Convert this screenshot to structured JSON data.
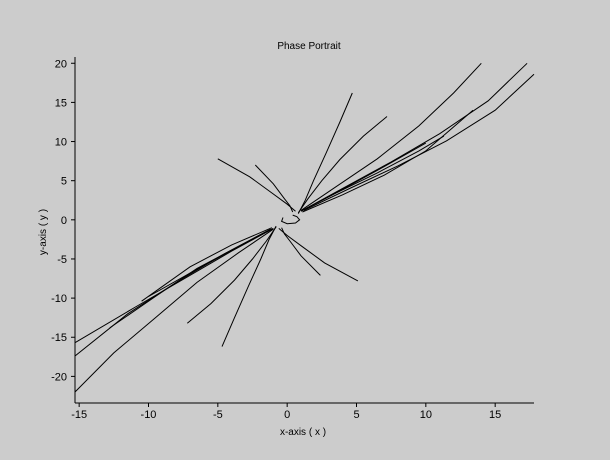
{
  "chart_data": {
    "type": "line",
    "title": "Phase Portrait",
    "xlabel": "x-axis ( x )",
    "ylabel": "y-axis ( y )",
    "xlim": [
      -15.3,
      17.8
    ],
    "ylim": [
      -23.4,
      20.8
    ],
    "xticks": [
      -15,
      -10,
      -5,
      0,
      5,
      10,
      15
    ],
    "yticks": [
      20,
      15,
      10,
      5,
      0,
      -5,
      -10,
      -15,
      -20
    ],
    "grid": false,
    "axis_color": "#000000",
    "background": "#cccccc",
    "line_color": "#000000",
    "series": [
      {
        "x": [
          0.8,
          1.3,
          1.9,
          2.8,
          3.8,
          4.7
        ],
        "y": [
          0.8,
          2.5,
          5.0,
          8.5,
          12.5,
          16.2
        ]
      },
      {
        "x": [
          0.8,
          1.5,
          2.5,
          3.8,
          5.5,
          7.2
        ],
        "y": [
          0.9,
          2.7,
          5.0,
          7.7,
          10.7,
          13.2
        ]
      },
      {
        "x": [
          1.0,
          3.5,
          6.5,
          9.5,
          12.0,
          14.0
        ],
        "y": [
          1.2,
          4.2,
          7.8,
          12.0,
          16.2,
          20.0
        ]
      },
      {
        "x": [
          1.1,
          4.0,
          7.5,
          11.0,
          14.5,
          17.3
        ],
        "y": [
          1.2,
          4.0,
          7.4,
          11.0,
          15.2,
          20.0
        ]
      },
      {
        "x": [
          1.2,
          4.5,
          8.0,
          11.5,
          15.0,
          17.8
        ],
        "y": [
          1.2,
          4.0,
          6.9,
          10.1,
          14.0,
          18.6
        ]
      },
      {
        "x": [
          1.0,
          4.0,
          7.0,
          10.0
        ],
        "y": [
          1.1,
          3.9,
          6.8,
          9.8
        ]
      },
      {
        "x": [
          1.0,
          3.5,
          6.5,
          9.5,
          11.3
        ],
        "y": [
          1.1,
          3.4,
          6.0,
          8.8,
          10.7
        ]
      },
      {
        "x": [
          1.1,
          4.0,
          7.0,
          10.0,
          13.4
        ],
        "y": [
          1.0,
          3.2,
          5.7,
          8.8,
          14.0
        ]
      },
      {
        "x": [
          0.4,
          0.2,
          -0.2,
          -1.0,
          -2.3
        ],
        "y": [
          1.0,
          1.8,
          2.7,
          4.6,
          7.0
        ]
      },
      {
        "x": [
          0.6,
          0.0,
          -1.0,
          -2.7,
          -5.0
        ],
        "y": [
          1.1,
          2.0,
          3.3,
          5.5,
          7.8
        ]
      },
      {
        "x": [
          -0.8,
          -1.3,
          -1.9,
          -2.8,
          -3.8,
          -4.7
        ],
        "y": [
          -0.8,
          -2.5,
          -5.0,
          -8.5,
          -12.5,
          -16.2
        ]
      },
      {
        "x": [
          -0.8,
          -1.5,
          -2.5,
          -3.8,
          -5.5,
          -7.2
        ],
        "y": [
          -0.9,
          -2.7,
          -5.0,
          -7.7,
          -10.7,
          -13.2
        ]
      },
      {
        "x": [
          -1.0,
          -3.5,
          -6.5,
          -9.5,
          -12.5,
          -15.3
        ],
        "y": [
          -1.2,
          -4.2,
          -8.0,
          -12.5,
          -17.0,
          -22.0
        ]
      },
      {
        "x": [
          -1.1,
          -4.0,
          -7.5,
          -11.0,
          -15.3
        ],
        "y": [
          -1.2,
          -4.0,
          -7.6,
          -11.2,
          -15.7
        ]
      },
      {
        "x": [
          -1.2,
          -4.5,
          -8.0,
          -11.5,
          -15.3
        ],
        "y": [
          -1.2,
          -4.3,
          -8.0,
          -12.0,
          -17.4
        ]
      },
      {
        "x": [
          -1.0,
          -4.0,
          -7.0,
          -10.0
        ],
        "y": [
          -1.1,
          -3.9,
          -6.8,
          -9.8
        ]
      },
      {
        "x": [
          -1.0,
          -3.5,
          -6.5,
          -9.5,
          -12.8
        ],
        "y": [
          -1.1,
          -3.4,
          -6.2,
          -9.8,
          -13.8
        ]
      },
      {
        "x": [
          -1.1,
          -4.0,
          -7.0,
          -10.5
        ],
        "y": [
          -1.0,
          -3.2,
          -6.0,
          -10.4
        ]
      },
      {
        "x": [
          -0.4,
          -0.2,
          0.2,
          1.0,
          2.4
        ],
        "y": [
          -1.0,
          -1.8,
          -2.7,
          -4.6,
          -7.1
        ]
      },
      {
        "x": [
          -0.6,
          0.0,
          1.0,
          2.7,
          5.1
        ],
        "y": [
          -1.1,
          -2.0,
          -3.3,
          -5.5,
          -7.8
        ]
      },
      {
        "x": [
          0.4,
          0.7,
          0.9,
          0.6,
          0.0,
          -0.4,
          -0.3
        ],
        "y": [
          0.6,
          0.4,
          0.0,
          -0.4,
          -0.5,
          -0.2,
          0.3
        ]
      }
    ]
  }
}
